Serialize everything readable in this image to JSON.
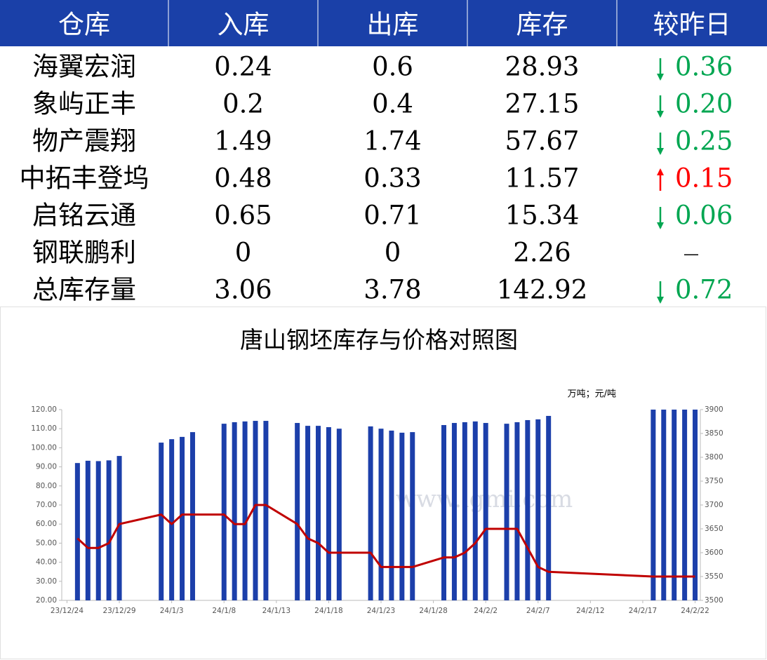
{
  "table": {
    "header": [
      "仓库",
      "入库",
      "出库",
      "库存",
      "较昨日"
    ],
    "rows": [
      [
        "海翼宏润",
        "0.24",
        "0.6",
        "28.93"
      ],
      [
        "象屿正丰",
        "0.2",
        "0.4",
        "27.15"
      ],
      [
        "物产震翔",
        "1.49",
        "1.74",
        "57.67"
      ],
      [
        "中拓丰登坞",
        "0.48",
        "0.33",
        "11.57"
      ],
      [
        "启铭云通",
        "0.65",
        "0.71",
        "15.34"
      ],
      [
        "钢联鹏利",
        "0",
        "0",
        "2.26"
      ],
      [
        "总库存量",
        "3.06",
        "3.78",
        "142.92"
      ]
    ],
    "change": [
      {
        "direction": "down",
        "value": "0.36",
        "color": "#00a651"
      },
      {
        "direction": "down",
        "value": "0.20",
        "color": "#00a651"
      },
      {
        "direction": "down",
        "value": "0.25",
        "color": "#00a651"
      },
      {
        "direction": "up",
        "value": "0.15",
        "color": "#ff0000"
      },
      {
        "direction": "down",
        "value": "0.06",
        "color": "#00a651"
      },
      {
        "direction": null,
        "value": "—",
        "color": "#000000"
      },
      {
        "direction": "down",
        "value": "0.72",
        "color": "#00a651"
      }
    ],
    "header_color": "#1a40a8"
  },
  "chart_data": {
    "type": "bar_line",
    "title": "唐山钢坯库存与价格对照图",
    "unit_label": "万吨；元/吨",
    "watermark": "www.lgmi.com",
    "categories": [
      "23/12/24",
      null,
      null,
      null,
      null,
      "23/12/29",
      null,
      null,
      null,
      null,
      "24/1/3",
      null,
      null,
      null,
      null,
      "24/1/8",
      null,
      null,
      null,
      null,
      "24/1/13",
      null,
      null,
      null,
      null,
      "24/1/18",
      null,
      null,
      null,
      null,
      "24/1/23",
      null,
      null,
      null,
      null,
      "24/1/28",
      null,
      null,
      null,
      null,
      "24/2/2",
      null,
      null,
      null,
      null,
      "24/2/7",
      null,
      null,
      null,
      null,
      "24/2/12",
      null,
      null,
      null,
      null,
      "24/2/17",
      null,
      null,
      null,
      null,
      "24/2/22"
    ],
    "series": [
      {
        "type": "bar",
        "color": "#1c3faa",
        "values": [
          null,
          92,
          93.2,
          93,
          93.4,
          95.7,
          null,
          null,
          null,
          102.7,
          104.5,
          105.7,
          108.2,
          null,
          null,
          112.6,
          113.4,
          113.8,
          114.1,
          114.1,
          null,
          null,
          113,
          111.5,
          111.5,
          110.8,
          110,
          null,
          null,
          111.2,
          110,
          109,
          107.9,
          108.2,
          null,
          null,
          111.9,
          113,
          113.4,
          113.8,
          113,
          null,
          112.6,
          113.4,
          114.5,
          114.9,
          116.7,
          null,
          null,
          null,
          null,
          null,
          null,
          null,
          null,
          null,
          120,
          120,
          120,
          120,
          120
        ]
      },
      {
        "type": "line",
        "axis": "y2",
        "color": "#c00000",
        "values": [
          null,
          3630,
          3610,
          3610,
          3620,
          3660,
          null,
          null,
          null,
          3680,
          3660,
          3680,
          3680,
          null,
          null,
          3680,
          3660,
          3660,
          3700,
          3700,
          null,
          null,
          3660,
          3630,
          3620,
          3600,
          3600,
          null,
          null,
          3600,
          3570,
          3570,
          3570,
          3570,
          null,
          null,
          3590,
          3590,
          3600,
          3620,
          3650,
          null,
          3650,
          3650,
          3610,
          3570,
          3560,
          null,
          null,
          null,
          null,
          null,
          null,
          null,
          null,
          null,
          3550,
          3550,
          3550,
          3550,
          3550
        ]
      }
    ],
    "ylim": [
      20,
      120
    ],
    "yticks": [
      {
        "value": 20,
        "label": "20.00"
      },
      {
        "value": 30,
        "label": "30.00"
      },
      {
        "value": 40,
        "label": "40.00"
      },
      {
        "value": 50,
        "label": "50.00"
      },
      {
        "value": 60,
        "label": "60.00"
      },
      {
        "value": 70,
        "label": "70.00"
      },
      {
        "value": 80,
        "label": "80.00"
      },
      {
        "value": 90,
        "label": "90.00"
      },
      {
        "value": 100,
        "label": "100.00"
      },
      {
        "value": 110,
        "label": "110.00"
      },
      {
        "value": 120,
        "label": "120.00"
      }
    ],
    "y2lim": [
      3500,
      3900
    ],
    "y2ticks": [
      3500,
      3550,
      3600,
      3650,
      3700,
      3750,
      3800,
      3850,
      3900
    ],
    "grid": false
  }
}
